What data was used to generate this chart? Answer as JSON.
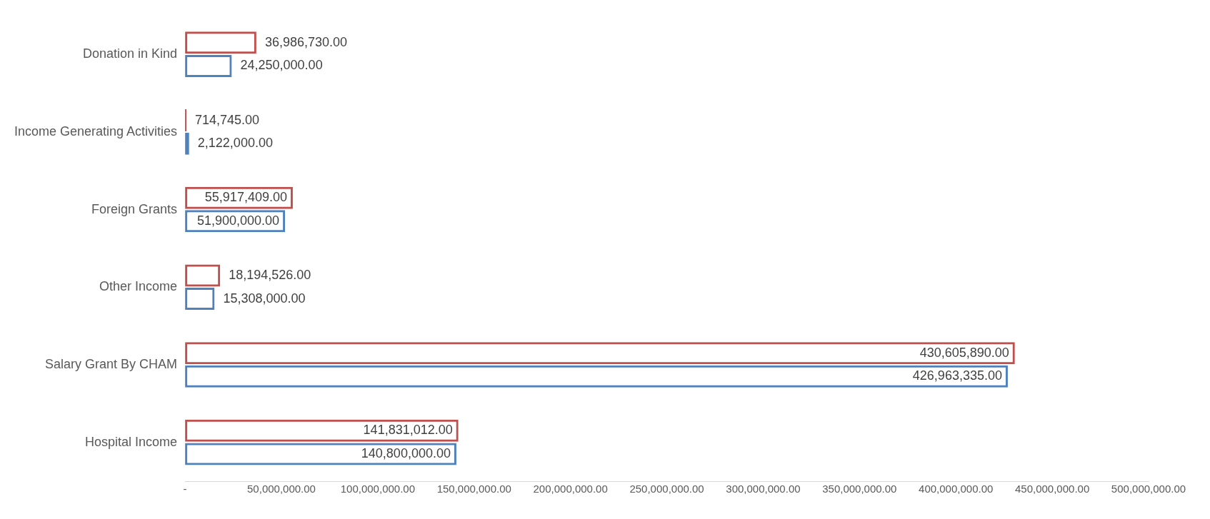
{
  "chart_data": {
    "type": "bar",
    "orientation": "horizontal",
    "categories": [
      "Donation in Kind",
      "Income Generating Activities",
      "Foreign Grants",
      "Other Income",
      "Salary Grant By CHAM",
      "Hospital Income"
    ],
    "series": [
      {
        "color": "#c0504d",
        "values": [
          36986730,
          714745,
          55917409,
          18194526,
          430605890,
          141831012
        ],
        "value_labels": [
          "36,986,730.00",
          "714,745.00",
          "55,917,409.00",
          "18,194,526.00",
          "430,605,890.00",
          "141,831,012.00"
        ]
      },
      {
        "color": "#4f81bd",
        "values": [
          24250000,
          2122000,
          51900000,
          15308000,
          426963335,
          140800000
        ],
        "value_labels": [
          "24,250,000.00",
          "2,122,000.00",
          "51,900,000.00",
          "15,308,000.00",
          "426,963,335.00",
          "140,800,000.00"
        ]
      }
    ],
    "xlim": [
      0,
      500000000
    ],
    "xticks": [
      {
        "value": 0,
        "label": "-"
      },
      {
        "value": 50000000,
        "label": "50,000,000.00"
      },
      {
        "value": 100000000,
        "label": "100,000,000.00"
      },
      {
        "value": 150000000,
        "label": "150,000,000.00"
      },
      {
        "value": 200000000,
        "label": "200,000,000.00"
      },
      {
        "value": 250000000,
        "label": "250,000,000.00"
      },
      {
        "value": 300000000,
        "label": "300,000,000.00"
      },
      {
        "value": 350000000,
        "label": "350,000,000.00"
      },
      {
        "value": 400000000,
        "label": "400,000,000.00"
      },
      {
        "value": 450000000,
        "label": "450,000,000.00"
      },
      {
        "value": 500000000,
        "label": "500,000,000.00"
      }
    ],
    "grid": false,
    "legend": false
  }
}
